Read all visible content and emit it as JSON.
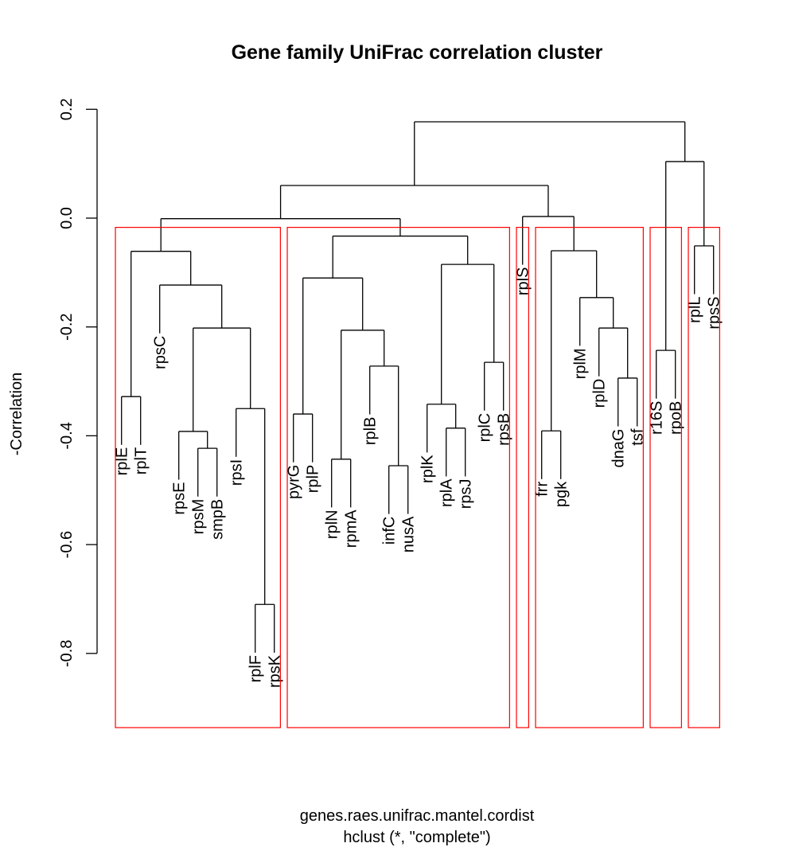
{
  "chart_data": {
    "type": "dendrogram",
    "title": "Gene family UniFrac correlation cluster",
    "ylabel": "-Correlation",
    "xlabel": "genes.raes.unifrac.mantel.cordist",
    "sub": "hclust (*, \"complete\")",
    "yticks": [
      0.2,
      0.0,
      -0.2,
      -0.4,
      -0.6,
      -0.8
    ],
    "ytick_labels": [
      "0.2",
      "0.0",
      "-0.2",
      "-0.4",
      "-0.6",
      "-0.8"
    ],
    "hang": 0.1,
    "rect_k": 6,
    "rect_color": "#FF0000",
    "line_color": "#000000",
    "tree": {
      "h": 0.177,
      "c": [
        {
          "h": 0.06,
          "c": [
            {
              "h": -0.001,
              "c": [
                {
                  "h": -0.061,
                  "c": [
                    {
                      "h": -0.328,
                      "c": [
                        "rplE",
                        "rplT"
                      ]
                    },
                    {
                      "h": -0.123,
                      "c": [
                        "rpsC",
                        {
                          "h": -0.202,
                          "c": [
                            {
                              "h": -0.392,
                              "c": [
                                "rpsE",
                                {
                                  "h": -0.423,
                                  "c": [
                                    "rpsM",
                                    "smpB"
                                  ]
                                }
                              ]
                            },
                            {
                              "h": -0.35,
                              "c": [
                                "rpsI",
                                {
                                  "h": -0.71,
                                  "c": [
                                    "rplF",
                                    "rpsK"
                                  ]
                                }
                              ]
                            }
                          ]
                        }
                      ]
                    }
                  ]
                },
                {
                  "h": -0.033,
                  "c": [
                    {
                      "h": -0.11,
                      "c": [
                        {
                          "h": -0.36,
                          "c": [
                            "pyrG",
                            "rplP"
                          ]
                        },
                        {
                          "h": -0.206,
                          "c": [
                            {
                              "h": -0.443,
                              "c": [
                                "rplN",
                                "rpmA"
                              ]
                            },
                            {
                              "h": -0.272,
                              "c": [
                                "rplB",
                                {
                                  "h": -0.455,
                                  "c": [
                                    "infC",
                                    "nusA"
                                  ]
                                }
                              ]
                            }
                          ]
                        }
                      ]
                    },
                    {
                      "h": -0.085,
                      "c": [
                        {
                          "h": -0.342,
                          "c": [
                            "rplK",
                            {
                              "h": -0.386,
                              "c": [
                                "rplA",
                                "rpsJ"
                              ]
                            }
                          ]
                        },
                        {
                          "h": -0.265,
                          "c": [
                            "rplC",
                            "rpsB"
                          ]
                        }
                      ]
                    }
                  ]
                }
              ]
            },
            {
              "h": 0.003,
              "c": [
                "rplS",
                {
                  "h": -0.06,
                  "c": [
                    {
                      "h": -0.391,
                      "c": [
                        "frr",
                        "pgk"
                      ]
                    },
                    {
                      "h": -0.146,
                      "c": [
                        "rplM",
                        {
                          "h": -0.202,
                          "c": [
                            "rplD",
                            {
                              "h": -0.294,
                              "c": [
                                "dnaG",
                                "tsf"
                              ]
                            }
                          ]
                        }
                      ]
                    }
                  ]
                }
              ]
            }
          ]
        },
        {
          "h": 0.104,
          "c": [
            {
              "h": -0.243,
              "c": [
                "r16S",
                "rpoB"
              ]
            },
            {
              "h": -0.051,
              "c": [
                "rplL",
                "rpsS"
              ]
            }
          ]
        }
      ]
    }
  }
}
